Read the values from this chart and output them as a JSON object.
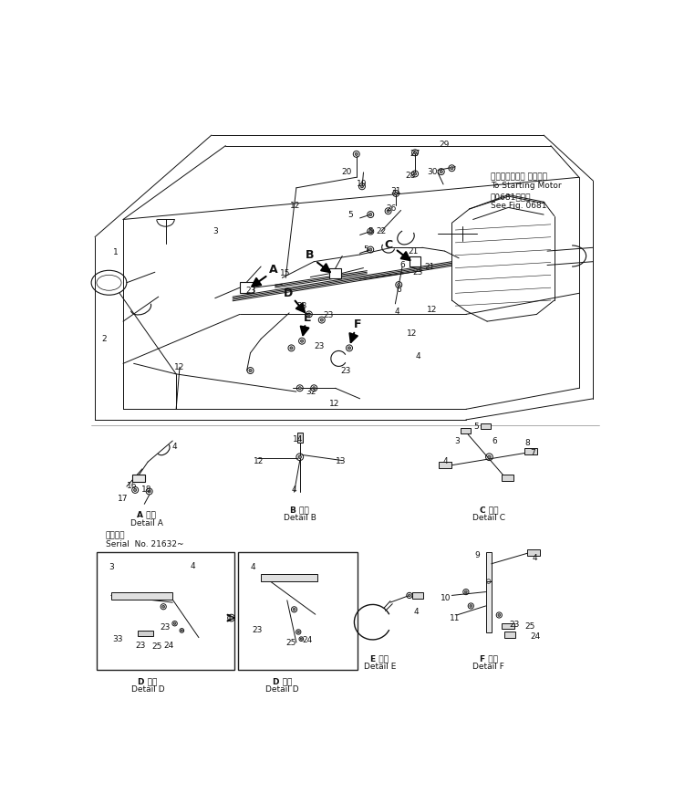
{
  "bg_color": "#ffffff",
  "fig_width": 7.39,
  "fig_height": 8.81,
  "dpi": 100,
  "lc": "#111111",
  "lw_main": 0.7,
  "fs_label": 6.5,
  "fs_caption": 6.5,
  "japanese_text": {
    "starting_motor_ja": "スターティング モータヘ",
    "starting_motor_en": "To Starting Motor",
    "see_fig_ja": "第0681図参照",
    "see_fig_en": "See Fig. 0681",
    "detail_a_ja": "A 詳細",
    "detail_a_en": "Detail A",
    "detail_b_ja": "B 詳細",
    "detail_b_en": "Detail B",
    "detail_c_ja": "C 詳細",
    "detail_c_en": "Detail C",
    "detail_d_ja": "D 詳細",
    "detail_d_en": "Detail D",
    "detail_e_ja": "E 詳細",
    "detail_e_en": "Detail E",
    "detail_f_ja": "F 詳細",
    "detail_f_en": "Detail F",
    "serial_ja": "適用号機",
    "serial_en": "Serial  No. 21632~"
  },
  "main_labels": [
    [
      44,
      222,
      "1"
    ],
    [
      28,
      345,
      "2"
    ],
    [
      185,
      192,
      "3"
    ],
    [
      135,
      385,
      "12"
    ],
    [
      298,
      155,
      "12"
    ],
    [
      492,
      303,
      "12"
    ],
    [
      463,
      337,
      "12"
    ],
    [
      284,
      252,
      "15"
    ],
    [
      371,
      107,
      "20"
    ],
    [
      393,
      125,
      "19"
    ],
    [
      376,
      168,
      "5"
    ],
    [
      405,
      192,
      "5"
    ],
    [
      398,
      218,
      "5"
    ],
    [
      420,
      192,
      "22"
    ],
    [
      434,
      160,
      "26"
    ],
    [
      441,
      135,
      "31"
    ],
    [
      462,
      113,
      "28"
    ],
    [
      468,
      82,
      "27"
    ],
    [
      509,
      68,
      "29"
    ],
    [
      493,
      108,
      "30"
    ],
    [
      450,
      240,
      "6"
    ],
    [
      445,
      275,
      "6"
    ],
    [
      236,
      276,
      "23"
    ],
    [
      308,
      298,
      "23"
    ],
    [
      472,
      250,
      "23"
    ],
    [
      370,
      390,
      "23"
    ],
    [
      466,
      220,
      "21"
    ],
    [
      443,
      306,
      "4"
    ],
    [
      472,
      370,
      "4"
    ],
    [
      321,
      420,
      "32"
    ],
    [
      354,
      437,
      "12"
    ]
  ],
  "detail_a_labels": [
    [
      128,
      498,
      "4"
    ],
    [
      67,
      554,
      "16"
    ],
    [
      55,
      572,
      "17"
    ],
    [
      88,
      560,
      "18"
    ]
  ],
  "detail_b_labels": [
    [
      302,
      488,
      "14"
    ],
    [
      247,
      519,
      "12"
    ],
    [
      363,
      519,
      "13"
    ],
    [
      297,
      560,
      "4"
    ]
  ],
  "detail_c_labels": [
    [
      528,
      490,
      "3"
    ],
    [
      554,
      470,
      "5"
    ],
    [
      580,
      491,
      "6"
    ],
    [
      634,
      507,
      "7"
    ],
    [
      627,
      493,
      "8"
    ],
    [
      511,
      519,
      "4"
    ]
  ],
  "detail_d1_labels": [
    [
      38,
      670,
      "3"
    ],
    [
      153,
      668,
      "4"
    ],
    [
      47,
      772,
      "33"
    ],
    [
      80,
      782,
      "23"
    ],
    [
      103,
      783,
      "25"
    ],
    [
      120,
      782,
      "24"
    ],
    [
      115,
      755,
      "23"
    ]
  ],
  "detail_d2_labels": [
    [
      239,
      670,
      "4"
    ],
    [
      245,
      760,
      "23"
    ],
    [
      293,
      778,
      "25"
    ],
    [
      315,
      774,
      "24"
    ]
  ],
  "detail_e_labels": [
    [
      470,
      733,
      "4"
    ]
  ],
  "detail_f_labels": [
    [
      556,
      653,
      "9"
    ],
    [
      638,
      657,
      "4"
    ],
    [
      512,
      714,
      "10"
    ],
    [
      524,
      742,
      "11"
    ],
    [
      609,
      752,
      "23"
    ],
    [
      630,
      754,
      "25"
    ],
    [
      638,
      768,
      "24"
    ]
  ]
}
